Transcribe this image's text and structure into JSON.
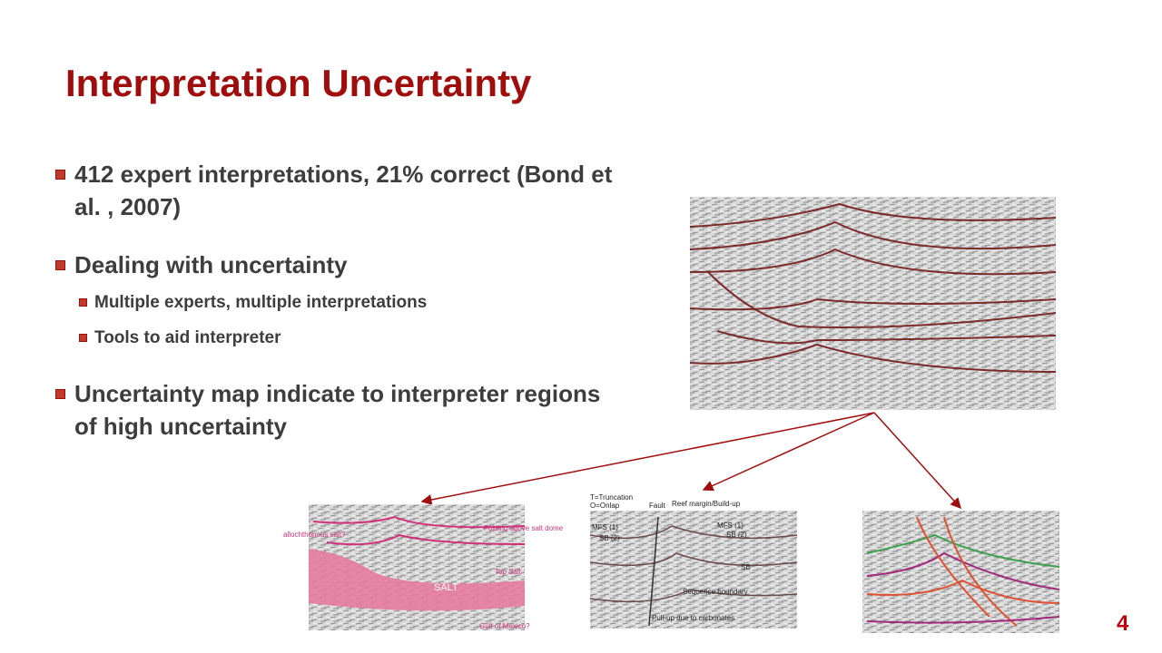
{
  "title": "Interpretation Uncertainty",
  "bullets": [
    {
      "text": "412 expert interpretations, 21% correct (Bond et al. , 2007)"
    },
    {
      "text": "Dealing with uncertainty",
      "sub": [
        "Multiple experts, multiple interpretations",
        "Tools to aid interpreter"
      ]
    },
    {
      "text": "Uncertainty map indicate to interpreter regions of high uncertainty"
    }
  ],
  "figures": {
    "salt": [
      "allochthonous salt?",
      "Folding above salt dome",
      "Top Salt",
      "SALT",
      "Gulf of Mexico?"
    ],
    "sequence": [
      "T=Truncation",
      "O=Onlap",
      "Fault",
      "Reef margin/Build-up",
      "MFS (1)",
      "SB (2)",
      "MFS (1)",
      "SB (2)",
      "SB",
      "Sequence boundary",
      "Pull-up due to carbonates"
    ]
  },
  "page_number": "4"
}
